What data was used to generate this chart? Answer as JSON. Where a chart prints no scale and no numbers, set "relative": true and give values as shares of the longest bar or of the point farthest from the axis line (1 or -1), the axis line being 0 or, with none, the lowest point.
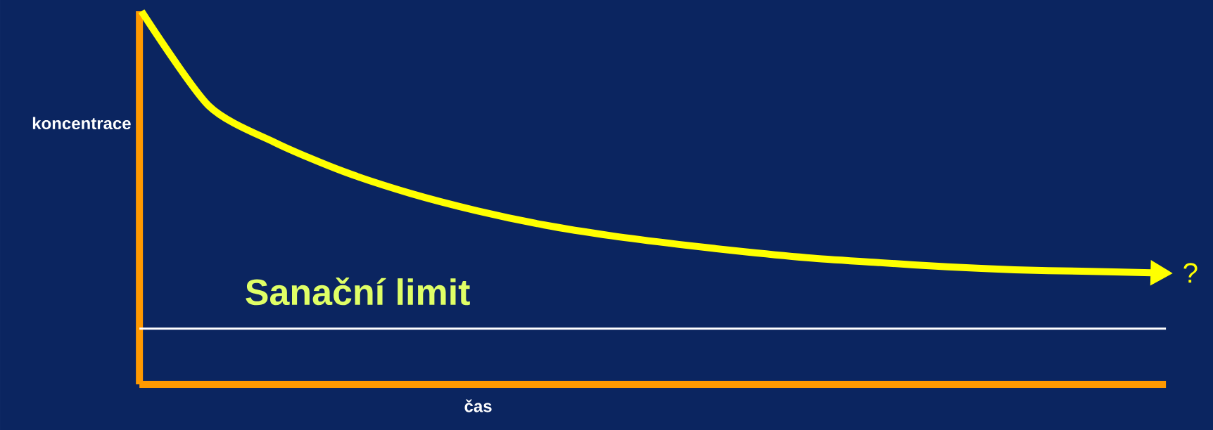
{
  "chart_data": {
    "type": "line",
    "relative": true,
    "xlabel": "čas",
    "ylabel": "koncentrace",
    "categories": [
      null,
      null,
      null,
      null,
      null,
      null,
      null,
      null,
      null,
      null,
      null,
      null,
      null,
      null,
      null,
      null
    ],
    "series": [
      {
        "color": "#ffff00",
        "values": [
          1.0,
          0.747,
          0.647,
          0.571,
          0.512,
          0.465,
          0.427,
          0.398,
          0.375,
          0.355,
          0.338,
          0.326,
          0.315,
          0.307,
          0.303,
          0.299
        ]
      }
    ],
    "ref_lines": [
      {
        "axis": "y",
        "value": 0.149,
        "label": "Sanační limit",
        "color": "#ffffff"
      }
    ],
    "annotations": [
      "?"
    ]
  }
}
